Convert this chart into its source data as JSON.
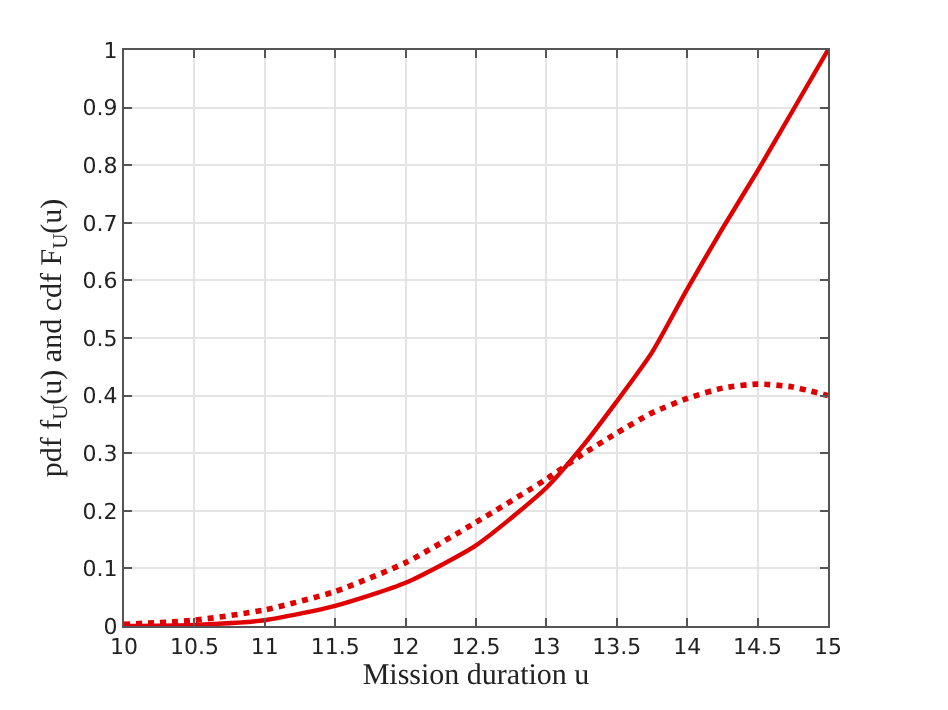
{
  "chart_data": {
    "type": "line",
    "xlabel": "Mission duration u",
    "ylabel": "pdf f$_{U}$(u) and cdf F$_{U}$(u)",
    "x": [
      10,
      10.5,
      11,
      11.5,
      12,
      12.5,
      13,
      13.25,
      13.5,
      13.75,
      14,
      14.25,
      14.5,
      14.75,
      15
    ],
    "series": [
      {
        "color": "#e00000",
        "line_style": "solid",
        "values": [
          0,
          0.002,
          0.01,
          0.035,
          0.075,
          0.14,
          0.24,
          0.31,
          0.39,
          0.475,
          0.585,
          0.69,
          0.79,
          0.895,
          1
        ]
      },
      {
        "color": "#e00000",
        "line_style": "dotted",
        "values": [
          0.003,
          0.01,
          0.028,
          0.06,
          0.11,
          0.18,
          0.255,
          0.297,
          0.335,
          0.37,
          0.395,
          0.413,
          0.42,
          0.415,
          0.4
        ]
      }
    ],
    "xlim": [
      10,
      15
    ],
    "xticks": [
      10,
      10.5,
      11,
      11.5,
      12,
      12.5,
      13,
      13.5,
      14,
      14.5,
      15
    ],
    "ylim": [
      0,
      1
    ],
    "yticks": [
      0,
      0.1,
      0.2,
      0.3,
      0.4,
      0.5,
      0.6,
      0.7,
      0.8,
      0.9,
      1
    ],
    "grid": true,
    "marker": "none"
  }
}
